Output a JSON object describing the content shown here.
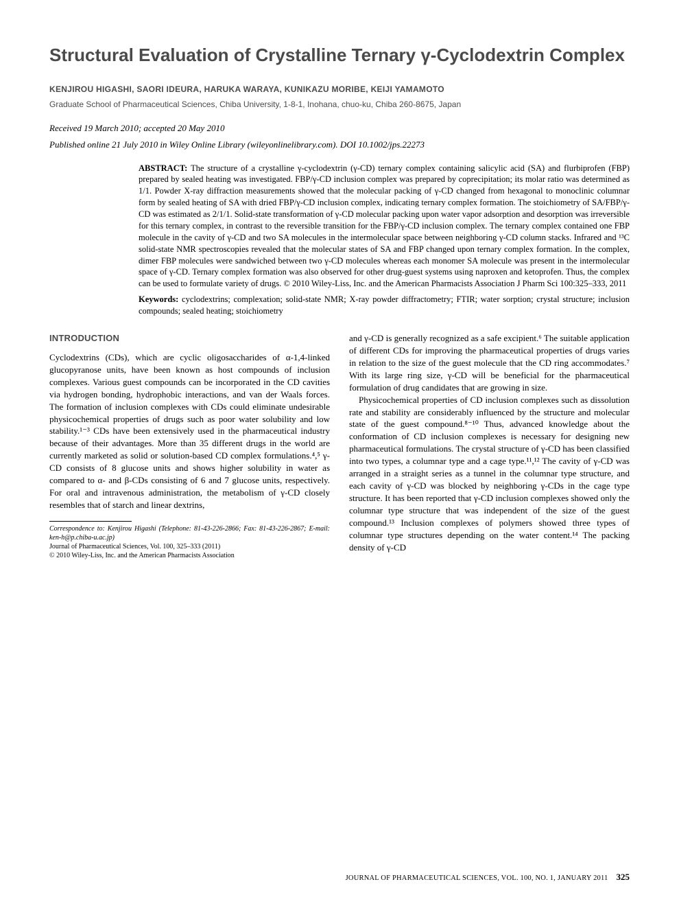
{
  "title": "Structural Evaluation of Crystalline Ternary γ-Cyclodextrin Complex",
  "authors": "KENJIROU HIGASHI, SAORI IDEURA, HARUKA WARAYA, KUNIKAZU MORIBE, KEIJI YAMAMOTO",
  "affiliation": "Graduate School of Pharmaceutical Sciences, Chiba University, 1-8-1, Inohana, chuo-ku, Chiba 260-8675, Japan",
  "dates": "Received 19 March 2010; accepted 20 May 2010",
  "publine": "Published online 21 July 2010 in Wiley Online Library (wileyonlinelibrary.com). DOI 10.1002/jps.22273",
  "abstract": {
    "heading": "ABSTRACT:",
    "text": "The structure of a crystalline γ-cyclodextrin (γ-CD) ternary complex containing salicylic acid (SA) and flurbiprofen (FBP) prepared by sealed heating was investigated. FBP/γ-CD inclusion complex was prepared by coprecipitation; its molar ratio was determined as 1/1. Powder X-ray diffraction measurements showed that the molecular packing of γ-CD changed from hexagonal to monoclinic columnar form by sealed heating of SA with dried FBP/γ-CD inclusion complex, indicating ternary complex formation. The stoichiometry of SA/FBP/γ-CD was estimated as 2/1/1. Solid-state transformation of γ-CD molecular packing upon water vapor adsorption and desorption was irreversible for this ternary complex, in contrast to the reversible transition for the FBP/γ-CD inclusion complex. The ternary complex contained one FBP molecule in the cavity of γ-CD and two SA molecules in the intermolecular space between neighboring γ-CD column stacks. Infrared and ¹³C solid-state NMR spectroscopies revealed that the molecular states of SA and FBP changed upon ternary complex formation. In the complex, dimer FBP molecules were sandwiched between two γ-CD molecules whereas each monomer SA molecule was present in the intermolecular space of γ-CD. Ternary complex formation was also observed for other drug-guest systems using naproxen and ketoprofen. Thus, the complex can be used to formulate variety of drugs. © 2010 Wiley-Liss, Inc. and the American Pharmacists Association J Pharm Sci 100:325–333, 2011"
  },
  "keywords": {
    "heading": "Keywords:",
    "text": "cyclodextrins; complexation; solid-state NMR; X-ray powder diffractometry; FTIR; water sorption; crystal structure; inclusion compounds; sealed heating; stoichiometry"
  },
  "section_heading": "INTRODUCTION",
  "col1_p1": "Cyclodextrins (CDs), which are cyclic oligosaccharides of α-1,4-linked glucopyranose units, have been known as host compounds of inclusion complexes. Various guest compounds can be incorporated in the CD cavities via hydrogen bonding, hydrophobic interactions, and van der Waals forces. The formation of inclusion complexes with CDs could eliminate undesirable physicochemical properties of drugs such as poor water solubility and low stability.¹⁻³ CDs have been extensively used in the pharmaceutical industry because of their advantages. More than 35 different drugs in the world are currently marketed as solid or solution-based CD complex formulations.⁴,⁵ γ-CD consists of 8 glucose units and shows higher solubility in water as compared to α- and β-CDs consisting of 6 and 7 glucose units, respectively. For oral and intravenous administration, the metabolism of γ-CD closely resembles that of starch and linear dextrins,",
  "col2_p1": "and γ-CD is generally recognized as a safe excipient.⁶ The suitable application of different CDs for improving the pharmaceutical properties of drugs varies in relation to the size of the guest molecule that the CD ring accommodates.⁷ With its large ring size, γ-CD will be beneficial for the pharmaceutical formulation of drug candidates that are growing in size.",
  "col2_p2": "Physicochemical properties of CD inclusion complexes such as dissolution rate and stability are considerably influenced by the structure and molecular state of the guest compound.⁸⁻¹⁰ Thus, advanced knowledge about the conformation of CD inclusion complexes is necessary for designing new pharmaceutical formulations. The crystal structure of γ-CD has been classified into two types, a columnar type and a cage type.¹¹,¹² The cavity of γ-CD was arranged in a straight series as a tunnel in the columnar type structure, and each cavity of γ-CD was blocked by neighboring γ-CDs in the cage type structure. It has been reported that γ-CD inclusion complexes showed only the columnar type structure that was independent of the size of the guest compound.¹³ Inclusion complexes of polymers showed three types of columnar type structures depending on the water content.¹⁴ The packing density of γ-CD",
  "footnotes": {
    "correspondence": "Correspondence to: Kenjirou Higashi (Telephone: 81-43-226-2866; Fax: 81-43-226-2867; E-mail: ken-h@p.chiba-u.ac.jp)",
    "journal_line": "Journal of Pharmaceutical Sciences, Vol. 100, 325–333 (2011)",
    "copyright": "© 2010 Wiley-Liss, Inc. and the American Pharmacists Association"
  },
  "footer": {
    "journal": "JOURNAL OF PHARMACEUTICAL SCIENCES, VOL. 100, NO. 1, JANUARY 2011",
    "page": "325"
  },
  "colors": {
    "heading_gray": "#4a4a4a",
    "text_black": "#000000",
    "background": "#ffffff"
  },
  "typography": {
    "title_fontsize": 26,
    "authors_fontsize": 12,
    "body_fontsize": 13,
    "abstract_fontsize": 12.5,
    "footnote_fontsize": 10
  }
}
